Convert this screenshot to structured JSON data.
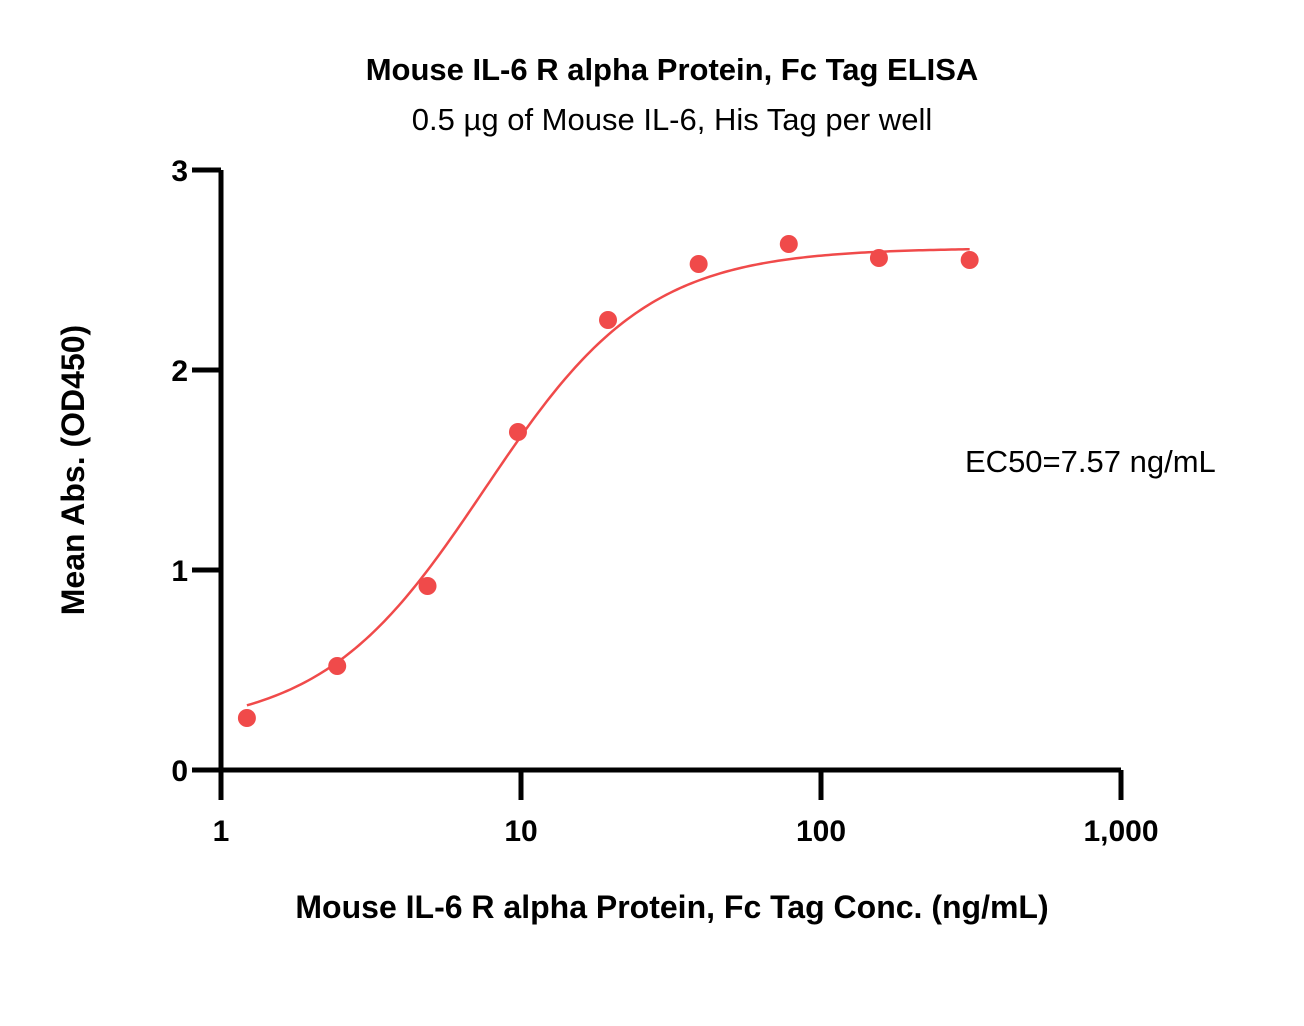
{
  "chart_data": {
    "type": "scatter",
    "title": "Mouse IL-6 R alpha Protein, Fc Tag ELISA",
    "subtitle": "0.5 µg of Mouse IL-6, His Tag per well",
    "xlabel": "Mouse IL-6 R alpha Protein, Fc Tag Conc. (ng/mL)",
    "ylabel": "Mean Abs. (OD450)",
    "x_scale": "log",
    "xlim": [
      1,
      1000
    ],
    "ylim": [
      0,
      3
    ],
    "x_ticks": [
      1,
      10,
      100,
      1000
    ],
    "x_tick_labels": [
      "1",
      "10",
      "100",
      "1,000"
    ],
    "y_ticks": [
      0,
      1,
      2,
      3
    ],
    "y_tick_labels": [
      "0",
      "1",
      "2",
      "3"
    ],
    "grid": false,
    "annotation": "EC50=7.57 ng/mL",
    "series": [
      {
        "color": "#f04a4a",
        "x": [
          1.22,
          2.44,
          4.88,
          9.77,
          19.5,
          39.1,
          78.1,
          156,
          313
        ],
        "y": [
          0.26,
          0.52,
          0.92,
          1.69,
          2.25,
          2.53,
          2.63,
          2.56,
          2.55
        ]
      }
    ],
    "fit_curve": {
      "color": "#f04a4a",
      "model": "4PL",
      "bottom": 0.2,
      "top": 2.61,
      "ec50": 7.57,
      "hill": 1.6
    }
  }
}
